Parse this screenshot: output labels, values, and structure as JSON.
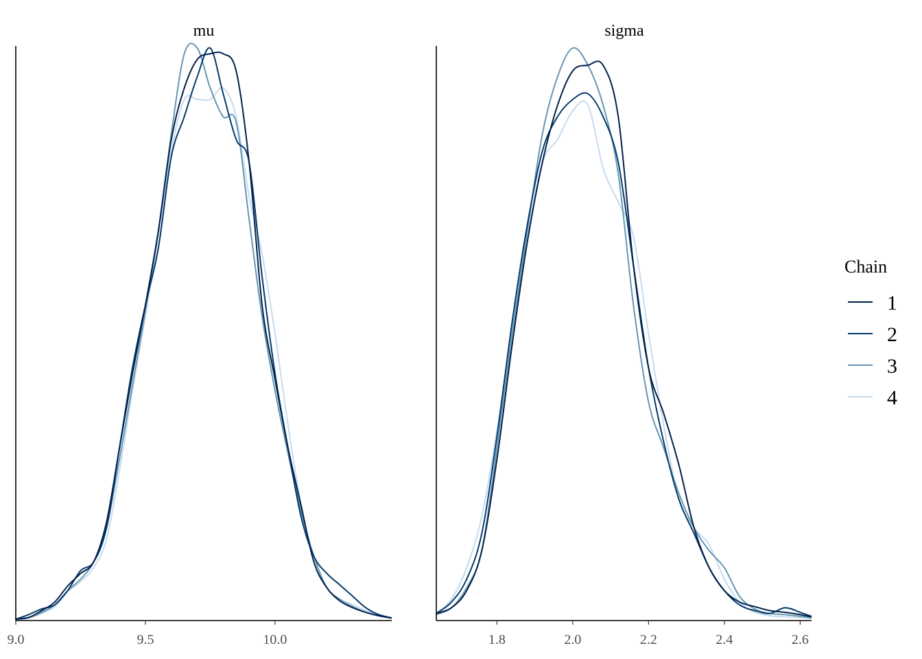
{
  "chart_data": [
    {
      "type": "line",
      "title": "mu",
      "xlim": [
        9.0,
        10.45
      ],
      "ylim": [
        0,
        1.0
      ],
      "xticks": [
        9.0,
        9.5,
        10.0
      ],
      "xtick_labels": [
        "9.0",
        "9.5",
        "10.0"
      ],
      "y_axis_labels": false,
      "series": [
        {
          "name": "1",
          "x": [
            9.0,
            9.05,
            9.1,
            9.15,
            9.2,
            9.25,
            9.3,
            9.35,
            9.4,
            9.45,
            9.5,
            9.55,
            9.6,
            9.65,
            9.7,
            9.75,
            9.8,
            9.85,
            9.9,
            9.95,
            10.0,
            10.05,
            10.1,
            10.15,
            10.2,
            10.25,
            10.3,
            10.35,
            10.4,
            10.45
          ],
          "y": [
            0.0,
            0.003,
            0.015,
            0.03,
            0.058,
            0.08,
            0.1,
            0.17,
            0.3,
            0.43,
            0.55,
            0.68,
            0.84,
            0.93,
            0.98,
            0.99,
            0.99,
            0.96,
            0.8,
            0.55,
            0.42,
            0.3,
            0.2,
            0.1,
            0.055,
            0.032,
            0.02,
            0.012,
            0.006,
            0.002
          ]
        },
        {
          "name": "2",
          "x": [
            9.0,
            9.05,
            9.1,
            9.15,
            9.2,
            9.25,
            9.3,
            9.35,
            9.4,
            9.45,
            9.5,
            9.55,
            9.6,
            9.65,
            9.7,
            9.75,
            9.8,
            9.85,
            9.9,
            9.95,
            10.0,
            10.05,
            10.1,
            10.15,
            10.2,
            10.25,
            10.3,
            10.35,
            10.4,
            10.45
          ],
          "y": [
            0.0,
            0.008,
            0.018,
            0.025,
            0.05,
            0.085,
            0.1,
            0.16,
            0.3,
            0.44,
            0.55,
            0.65,
            0.81,
            0.88,
            0.95,
            1.0,
            0.92,
            0.84,
            0.8,
            0.6,
            0.43,
            0.3,
            0.18,
            0.11,
            0.08,
            0.06,
            0.04,
            0.02,
            0.008,
            0.002
          ]
        },
        {
          "name": "3",
          "x": [
            9.0,
            9.05,
            9.1,
            9.15,
            9.2,
            9.25,
            9.3,
            9.35,
            9.4,
            9.45,
            9.5,
            9.55,
            9.6,
            9.65,
            9.7,
            9.75,
            9.8,
            9.85,
            9.9,
            9.95,
            10.0,
            10.05,
            10.1,
            10.15,
            10.2,
            10.25,
            10.3,
            10.35,
            10.4,
            10.45
          ],
          "y": [
            0.0,
            0.003,
            0.012,
            0.025,
            0.05,
            0.07,
            0.1,
            0.16,
            0.28,
            0.41,
            0.54,
            0.68,
            0.85,
            0.99,
            1.0,
            0.93,
            0.88,
            0.87,
            0.7,
            0.53,
            0.4,
            0.29,
            0.19,
            0.11,
            0.055,
            0.035,
            0.022,
            0.012,
            0.006,
            0.002
          ]
        },
        {
          "name": "4",
          "x": [
            9.0,
            9.05,
            9.1,
            9.15,
            9.2,
            9.25,
            9.3,
            9.35,
            9.4,
            9.45,
            9.5,
            9.55,
            9.6,
            9.65,
            9.7,
            9.75,
            9.8,
            9.85,
            9.9,
            9.95,
            10.0,
            10.05,
            10.1,
            10.15,
            10.2,
            10.25,
            10.3,
            10.35,
            10.4,
            10.45
          ],
          "y": [
            0.0,
            0.002,
            0.01,
            0.022,
            0.048,
            0.066,
            0.09,
            0.14,
            0.26,
            0.4,
            0.53,
            0.67,
            0.82,
            0.91,
            0.91,
            0.91,
            0.93,
            0.88,
            0.74,
            0.64,
            0.5,
            0.34,
            0.2,
            0.1,
            0.055,
            0.035,
            0.025,
            0.015,
            0.008,
            0.003
          ]
        }
      ]
    },
    {
      "type": "line",
      "title": "sigma",
      "xlim": [
        1.64,
        2.63
      ],
      "ylim": [
        0,
        1.0
      ],
      "xticks": [
        1.8,
        2.0,
        2.2,
        2.4,
        2.6
      ],
      "xtick_labels": [
        "1.8",
        "2.0",
        "2.2",
        "2.4",
        "2.6"
      ],
      "y_axis_labels": false,
      "series": [
        {
          "name": "1",
          "x": [
            1.64,
            1.68,
            1.72,
            1.76,
            1.8,
            1.84,
            1.88,
            1.92,
            1.96,
            2.0,
            2.04,
            2.08,
            2.12,
            2.16,
            2.2,
            2.24,
            2.28,
            2.32,
            2.36,
            2.4,
            2.44,
            2.48,
            2.52,
            2.56,
            2.6,
            2.63
          ],
          "y": [
            0.01,
            0.02,
            0.05,
            0.12,
            0.28,
            0.48,
            0.66,
            0.8,
            0.9,
            0.96,
            0.97,
            0.97,
            0.88,
            0.62,
            0.44,
            0.36,
            0.27,
            0.16,
            0.09,
            0.05,
            0.03,
            0.022,
            0.015,
            0.012,
            0.008,
            0.004
          ]
        },
        {
          "name": "2",
          "x": [
            1.64,
            1.68,
            1.72,
            1.76,
            1.8,
            1.84,
            1.88,
            1.92,
            1.96,
            2.0,
            2.04,
            2.08,
            2.12,
            2.16,
            2.2,
            2.24,
            2.28,
            2.32,
            2.36,
            2.4,
            2.44,
            2.48,
            2.52,
            2.56,
            2.6,
            2.63
          ],
          "y": [
            0.01,
            0.03,
            0.07,
            0.15,
            0.32,
            0.52,
            0.69,
            0.82,
            0.88,
            0.91,
            0.92,
            0.88,
            0.8,
            0.62,
            0.44,
            0.31,
            0.21,
            0.15,
            0.09,
            0.05,
            0.025,
            0.015,
            0.01,
            0.02,
            0.012,
            0.005
          ]
        },
        {
          "name": "3",
          "x": [
            1.64,
            1.68,
            1.72,
            1.76,
            1.8,
            1.84,
            1.88,
            1.92,
            1.96,
            2.0,
            2.04,
            2.08,
            2.12,
            2.16,
            2.2,
            2.24,
            2.28,
            2.32,
            2.36,
            2.4,
            2.44,
            2.48,
            2.52,
            2.56,
            2.6,
            2.63
          ],
          "y": [
            0.008,
            0.02,
            0.055,
            0.12,
            0.3,
            0.5,
            0.68,
            0.85,
            0.95,
            1.0,
            0.97,
            0.9,
            0.78,
            0.55,
            0.38,
            0.3,
            0.22,
            0.16,
            0.12,
            0.09,
            0.04,
            0.018,
            0.01,
            0.008,
            0.005,
            0.002
          ]
        },
        {
          "name": "4",
          "x": [
            1.64,
            1.68,
            1.72,
            1.76,
            1.8,
            1.84,
            1.88,
            1.92,
            1.96,
            2.0,
            2.04,
            2.08,
            2.12,
            2.16,
            2.2,
            2.24,
            2.28,
            2.32,
            2.36,
            2.4,
            2.44,
            2.48,
            2.52,
            2.56,
            2.6,
            2.63
          ],
          "y": [
            0.01,
            0.035,
            0.09,
            0.18,
            0.33,
            0.51,
            0.67,
            0.8,
            0.84,
            0.89,
            0.9,
            0.79,
            0.73,
            0.67,
            0.5,
            0.34,
            0.21,
            0.16,
            0.13,
            0.07,
            0.03,
            0.012,
            0.006,
            0.004,
            0.003,
            0.002
          ]
        }
      ]
    }
  ],
  "legend": {
    "title": "Chain",
    "placement": "right",
    "entries": [
      "1",
      "2",
      "3",
      "4"
    ]
  },
  "colors": {
    "1": "#011f4b",
    "2": "#03396c",
    "3": "#6497b1",
    "4": "#c6dbef"
  }
}
